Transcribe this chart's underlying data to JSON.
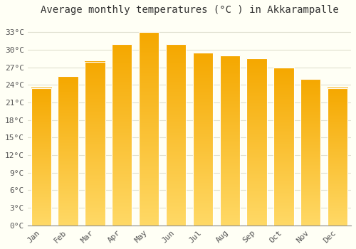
{
  "title": "Average monthly temperatures (°C ) in Akkarampalle",
  "months": [
    "Jan",
    "Feb",
    "Mar",
    "Apr",
    "May",
    "Jun",
    "Jul",
    "Aug",
    "Sep",
    "Oct",
    "Nov",
    "Dec"
  ],
  "values": [
    23.5,
    25.5,
    28.0,
    31.0,
    33.0,
    31.0,
    29.5,
    29.0,
    28.5,
    27.0,
    25.0,
    23.5
  ],
  "bar_color_dark": "#F5A800",
  "bar_color_light": "#FFD966",
  "bar_edge_color": "#FFFFFF",
  "yticks": [
    0,
    3,
    6,
    9,
    12,
    15,
    18,
    21,
    24,
    27,
    30,
    33
  ],
  "ytick_labels": [
    "0°C",
    "3°C",
    "6°C",
    "9°C",
    "12°C",
    "15°C",
    "18°C",
    "21°C",
    "24°C",
    "27°C",
    "30°C",
    "33°C"
  ],
  "ylim": [
    0,
    35
  ],
  "background_color": "#FFFFF5",
  "grid_color": "#E0E0D0",
  "title_fontsize": 10,
  "tick_fontsize": 8,
  "bar_width": 0.75
}
